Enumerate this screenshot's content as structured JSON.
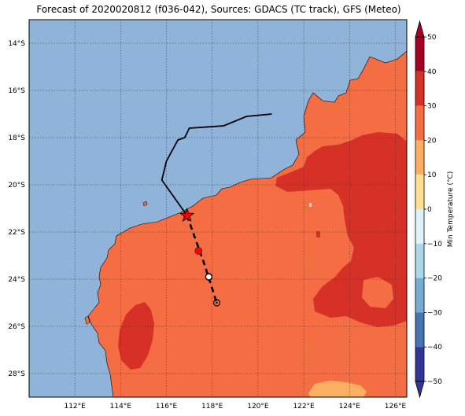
{
  "title": "Forecast of 2020020812 (f036-042), Sources: GDACS (TC track), GFS (Meteo)",
  "map": {
    "lon_labels": [
      "112°E",
      "114°E",
      "116°E",
      "118°E",
      "120°E",
      "122°E",
      "124°E",
      "126°E"
    ],
    "lon_values": [
      112,
      114,
      116,
      118,
      120,
      122,
      124,
      126
    ],
    "lat_labels": [
      "14°S",
      "16°S",
      "18°S",
      "20°S",
      "22°S",
      "24°S",
      "26°S",
      "28°S"
    ],
    "lat_values": [
      -14,
      -16,
      -18,
      -20,
      -22,
      -24,
      -26,
      -28
    ],
    "lon_range": [
      110.0,
      126.5
    ],
    "lat_range": [
      -29.0,
      -13.0
    ],
    "ocean_color": "#8fb3d9",
    "land_color": "#f46d43",
    "hot_color": "#d73027",
    "warm_color": "#fdae61",
    "track_past": [
      [
        120.6,
        -17.0
      ],
      [
        119.5,
        -17.1
      ],
      [
        118.5,
        -17.5
      ],
      [
        117.0,
        -17.6
      ],
      [
        116.8,
        -18.0
      ],
      [
        116.5,
        -18.1
      ],
      [
        116.0,
        -19.0
      ],
      [
        115.8,
        -19.8
      ],
      [
        116.9,
        -21.3
      ]
    ],
    "track_forecast": [
      [
        116.9,
        -21.3
      ],
      [
        117.3,
        -22.4
      ],
      [
        117.6,
        -23.2
      ],
      [
        117.9,
        -24.1
      ],
      [
        118.2,
        -25.0
      ]
    ],
    "current_position": [
      116.9,
      -21.3
    ],
    "forecast_markers": [
      {
        "lon": 117.4,
        "lat": -22.8,
        "kind": "red-dot"
      },
      {
        "lon": 117.85,
        "lat": -23.9,
        "kind": "open-circle"
      },
      {
        "lon": 118.2,
        "lat": -25.0,
        "kind": "circle-dot"
      }
    ]
  },
  "colorbar": {
    "label": "Min Temperature (°C)",
    "ticks": [
      "50",
      "40",
      "30",
      "20",
      "10",
      "0",
      "−10",
      "−20",
      "−30",
      "−40",
      "−50"
    ],
    "tick_values": [
      50,
      40,
      30,
      20,
      10,
      0,
      -10,
      -20,
      -30,
      -40,
      -50
    ],
    "colors": [
      "#a50026",
      "#d73027",
      "#f46d43",
      "#fdae61",
      "#fee090",
      "#ffffbf",
      "#e0f3f8",
      "#abd9e9",
      "#74add1",
      "#4575b4",
      "#313695"
    ]
  }
}
